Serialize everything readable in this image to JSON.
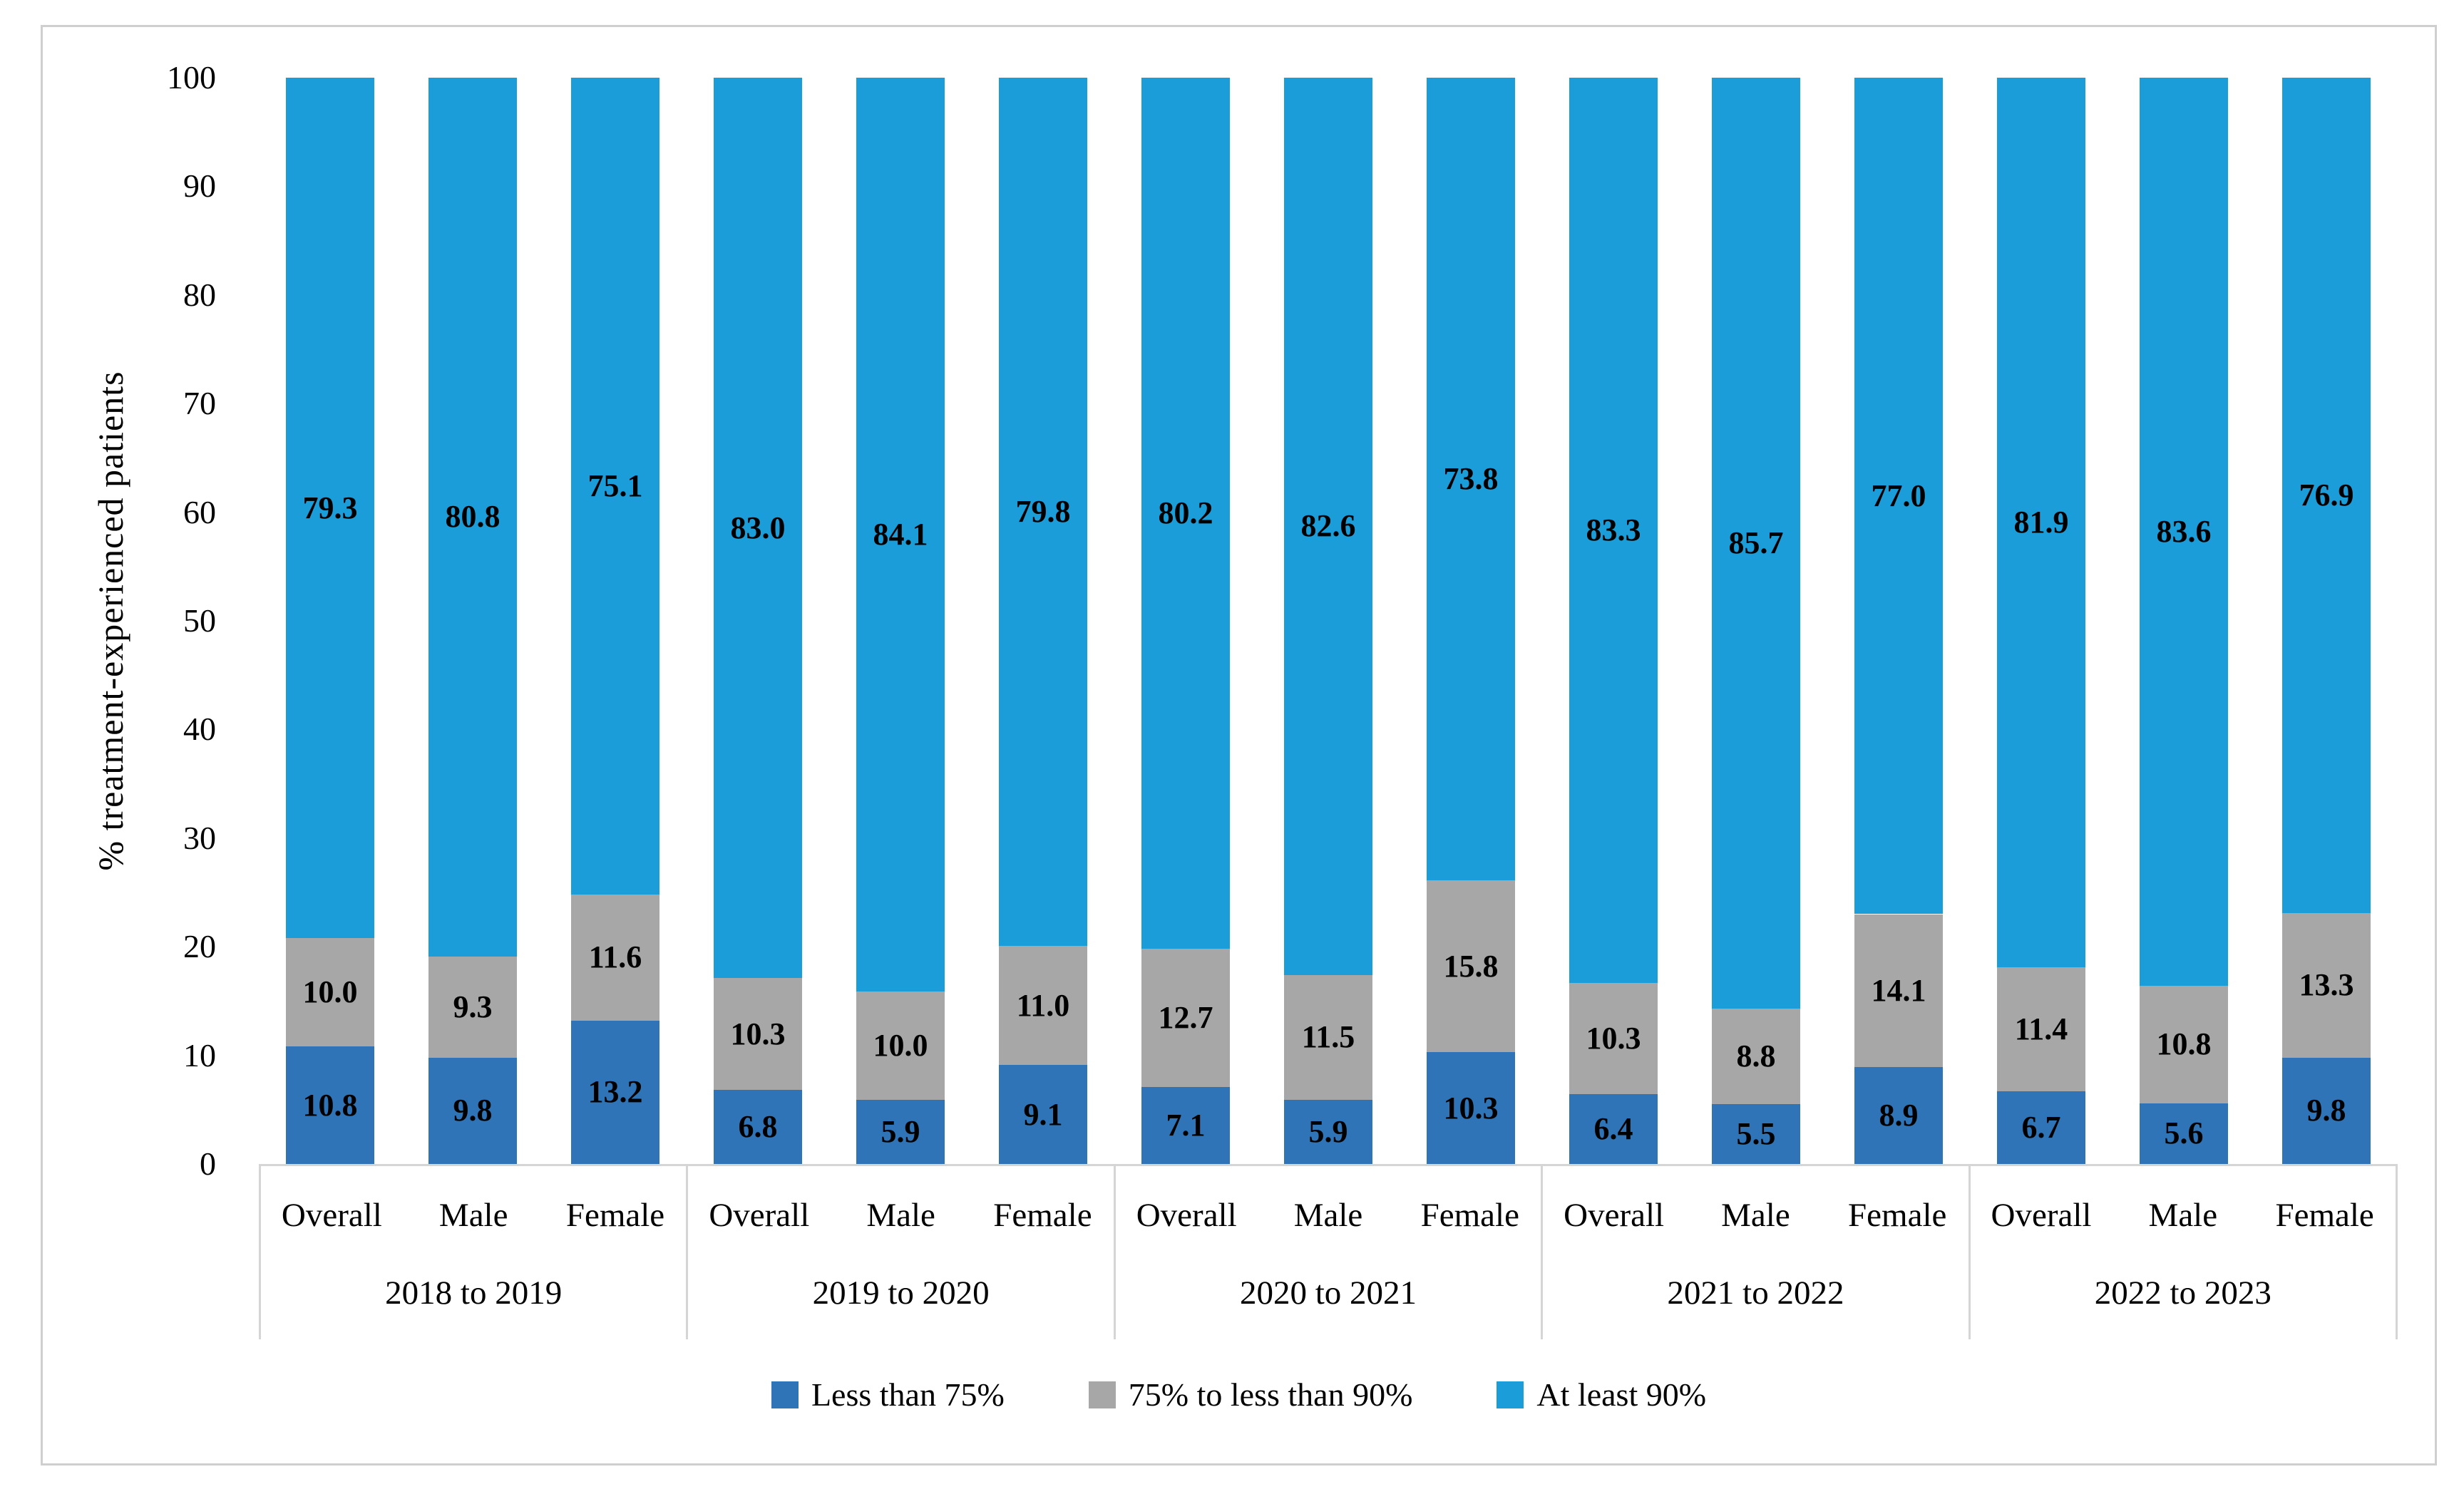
{
  "chart_data": {
    "type": "bar",
    "stacked": true,
    "title": "",
    "ylabel": "% treatment-experienced patients",
    "ylim": [
      0,
      100
    ],
    "y_ticks": [
      0,
      10,
      20,
      30,
      40,
      50,
      60,
      70,
      80,
      90,
      100
    ],
    "grid": false,
    "legend_position": "bottom",
    "value_label_decimals": 1,
    "group_categories": [
      "2018 to 2019",
      "2019 to 2020",
      "2020 to 2021",
      "2021 to 2022",
      "2022 to 2023"
    ],
    "sub_categories": [
      "Overall",
      "Male",
      "Female"
    ],
    "series": [
      {
        "name": "Less than 75%",
        "color": "#2E74B6",
        "values": [
          [
            10.8,
            9.8,
            13.2
          ],
          [
            6.8,
            5.9,
            9.1
          ],
          [
            7.1,
            5.9,
            10.3
          ],
          [
            6.4,
            5.5,
            8.9
          ],
          [
            6.7,
            5.6,
            9.8
          ]
        ]
      },
      {
        "name": "75% to less than 90%",
        "color": "#A7A7A7",
        "values": [
          [
            10.0,
            9.3,
            11.6
          ],
          [
            10.3,
            10.0,
            11.0
          ],
          [
            12.7,
            11.5,
            15.8
          ],
          [
            10.3,
            8.8,
            14.1
          ],
          [
            11.4,
            10.8,
            13.3
          ]
        ]
      },
      {
        "name": "At least 90%",
        "color": "#1B9DD9",
        "values": [
          [
            79.3,
            80.8,
            75.1
          ],
          [
            83.0,
            84.1,
            79.8
          ],
          [
            80.2,
            82.6,
            73.8
          ],
          [
            83.3,
            85.7,
            77.0
          ],
          [
            81.9,
            83.6,
            76.9
          ]
        ]
      }
    ]
  }
}
